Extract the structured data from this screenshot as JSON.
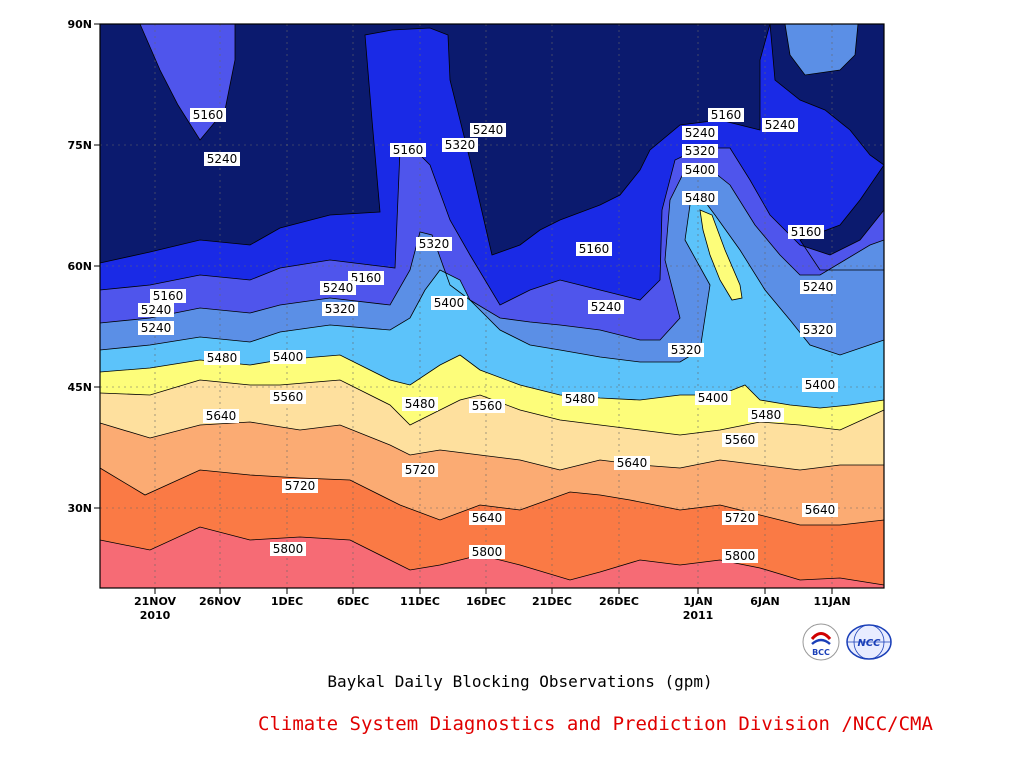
{
  "chart_data": {
    "type": "contour",
    "subtitle": "Baykal Daily Blocking Observations (gpm)",
    "credit": "Climate System Diagnostics and Prediction Division /NCC/CMA",
    "y_ticks": [
      "90N",
      "75N",
      "60N",
      "45N",
      "30N"
    ],
    "x_ticks": [
      {
        "label": "21NOV",
        "sub": "2010"
      },
      {
        "label": "26NOV",
        "sub": ""
      },
      {
        "label": "1DEC",
        "sub": ""
      },
      {
        "label": "6DEC",
        "sub": ""
      },
      {
        "label": "11DEC",
        "sub": ""
      },
      {
        "label": "16DEC",
        "sub": ""
      },
      {
        "label": "21DEC",
        "sub": ""
      },
      {
        "label": "26DEC",
        "sub": ""
      },
      {
        "label": "1JAN",
        "sub": "2011"
      },
      {
        "label": "6JAN",
        "sub": ""
      },
      {
        "label": "11JAN",
        "sub": ""
      }
    ],
    "contour_levels": [
      5160,
      5240,
      5320,
      5400,
      5480,
      5560,
      5640,
      5720,
      5800
    ],
    "fill_colors": {
      "below_5160": "#0b1a6e",
      "5160_5240": "#1a2ae6",
      "5240_5320": "#4f55ec",
      "5320_5400": "#5b8fe6",
      "5400_5480": "#5cc3fa",
      "5480_5560": "#fdfd7a",
      "5560_5640": "#fee09e",
      "5640_5720": "#fbab73",
      "5720_5800": "#fa7a45",
      "above_5800": "#f66b75"
    },
    "contour_labels": [
      "5160",
      "5240",
      "5160",
      "5240",
      "5160",
      "5240",
      "5320",
      "5160",
      "5240",
      "5320",
      "5480",
      "5400",
      "5400",
      "5320",
      "5240",
      "5160",
      "5240",
      "5160",
      "5240",
      "5320",
      "5400",
      "5480",
      "5160",
      "5240",
      "5240",
      "5320",
      "5320",
      "5400",
      "5560",
      "5640",
      "5480",
      "5560",
      "5480",
      "5400",
      "5480",
      "5560",
      "5640",
      "5720",
      "5640",
      "5720",
      "5640",
      "5720",
      "5800",
      "5800",
      "5800"
    ],
    "grid": true,
    "logos": [
      "BCC",
      "NCC"
    ]
  }
}
